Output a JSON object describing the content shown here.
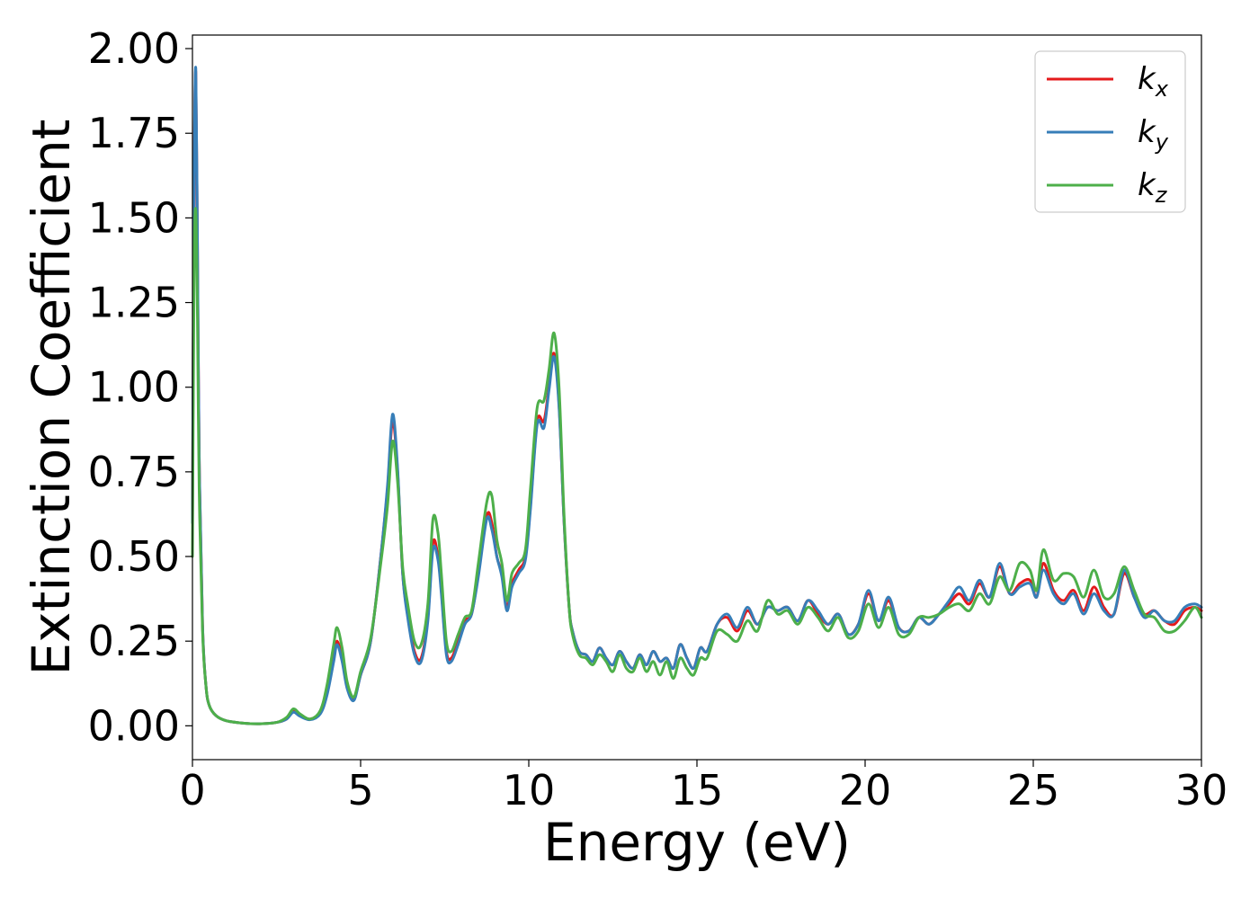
{
  "chart_data": {
    "type": "line",
    "title": "",
    "xlabel": "Energy (eV)",
    "ylabel": "Extinction Coefficient",
    "xlim": [
      0,
      30
    ],
    "ylim": [
      -0.1,
      2.04
    ],
    "xticks": [
      0,
      5,
      10,
      15,
      20,
      25,
      30
    ],
    "xtick_labels": [
      "0",
      "5",
      "10",
      "15",
      "20",
      "25",
      "30"
    ],
    "yticks": [
      0,
      0.25,
      0.5,
      0.75,
      1.0,
      1.25,
      1.5,
      1.75,
      2.0
    ],
    "ytick_labels": [
      "0.00",
      "0.25",
      "0.50",
      "0.75",
      "1.00",
      "1.25",
      "1.50",
      "1.75",
      "2.00"
    ],
    "grid": false,
    "legend_position": "top-right",
    "series": [
      {
        "name": "k_x",
        "label_base": "k",
        "label_sub": "x",
        "color": "#e41a1c",
        "x": [
          0,
          0.05,
          0.1,
          0.15,
          0.2,
          0.3,
          0.4,
          0.5,
          0.7,
          1.0,
          1.5,
          2.0,
          2.5,
          2.8,
          3.0,
          3.2,
          3.5,
          3.8,
          4.0,
          4.2,
          4.3,
          4.45,
          4.6,
          4.8,
          5.0,
          5.3,
          5.6,
          5.8,
          5.95,
          6.1,
          6.25,
          6.4,
          6.6,
          6.8,
          7.0,
          7.15,
          7.3,
          7.4,
          7.55,
          7.7,
          7.9,
          8.1,
          8.3,
          8.5,
          8.75,
          8.9,
          9.05,
          9.2,
          9.35,
          9.5,
          9.7,
          9.9,
          10.05,
          10.25,
          10.45,
          10.6,
          10.75,
          10.9,
          11.05,
          11.2,
          11.3,
          11.5,
          11.7,
          11.9,
          12.1,
          12.3,
          12.5,
          12.7,
          12.9,
          13.1,
          13.3,
          13.5,
          13.7,
          13.9,
          14.1,
          14.3,
          14.5,
          14.7,
          14.9,
          15.1,
          15.3,
          15.6,
          15.9,
          16.2,
          16.5,
          16.8,
          17.1,
          17.4,
          17.7,
          18.0,
          18.3,
          18.6,
          18.9,
          19.2,
          19.5,
          19.8,
          20.1,
          20.4,
          20.7,
          21.0,
          21.3,
          21.6,
          21.9,
          22.2,
          22.5,
          22.8,
          23.1,
          23.4,
          23.7,
          24.0,
          24.3,
          24.6,
          24.9,
          25.1,
          25.3,
          25.6,
          25.9,
          26.2,
          26.5,
          26.8,
          27.1,
          27.4,
          27.7,
          28.0,
          28.3,
          28.6,
          28.9,
          29.2,
          29.5,
          29.8,
          30.0
        ],
        "y": [
          0.6,
          1.6,
          1.93,
          1.4,
          0.8,
          0.3,
          0.12,
          0.06,
          0.03,
          0.015,
          0.008,
          0.006,
          0.01,
          0.02,
          0.045,
          0.03,
          0.02,
          0.04,
          0.1,
          0.2,
          0.25,
          0.2,
          0.12,
          0.08,
          0.15,
          0.25,
          0.5,
          0.7,
          0.9,
          0.75,
          0.45,
          0.33,
          0.22,
          0.2,
          0.32,
          0.54,
          0.5,
          0.4,
          0.22,
          0.2,
          0.25,
          0.31,
          0.33,
          0.45,
          0.62,
          0.6,
          0.5,
          0.45,
          0.35,
          0.42,
          0.46,
          0.5,
          0.65,
          0.9,
          0.9,
          1.0,
          1.1,
          0.95,
          0.6,
          0.35,
          0.28,
          0.22,
          0.21,
          0.19,
          0.23,
          0.2,
          0.18,
          0.22,
          0.19,
          0.17,
          0.21,
          0.18,
          0.22,
          0.19,
          0.2,
          0.17,
          0.24,
          0.2,
          0.17,
          0.23,
          0.22,
          0.3,
          0.32,
          0.28,
          0.34,
          0.3,
          0.35,
          0.34,
          0.35,
          0.31,
          0.37,
          0.33,
          0.3,
          0.33,
          0.27,
          0.3,
          0.39,
          0.31,
          0.37,
          0.29,
          0.28,
          0.32,
          0.3,
          0.33,
          0.36,
          0.39,
          0.36,
          0.42,
          0.38,
          0.47,
          0.39,
          0.42,
          0.43,
          0.38,
          0.48,
          0.4,
          0.37,
          0.4,
          0.34,
          0.41,
          0.35,
          0.33,
          0.45,
          0.38,
          0.33,
          0.34,
          0.31,
          0.3,
          0.34,
          0.35,
          0.34
        ],
        "dy": 0.0
      },
      {
        "name": "k_y",
        "label_base": "k",
        "label_sub": "y",
        "color": "#377eb8",
        "x": [
          0,
          0.05,
          0.1,
          0.15,
          0.2,
          0.3,
          0.4,
          0.5,
          0.7,
          1.0,
          1.5,
          2.0,
          2.5,
          2.8,
          3.0,
          3.2,
          3.5,
          3.8,
          4.0,
          4.2,
          4.3,
          4.45,
          4.6,
          4.8,
          5.0,
          5.3,
          5.6,
          5.8,
          5.95,
          6.1,
          6.25,
          6.4,
          6.6,
          6.8,
          7.0,
          7.15,
          7.3,
          7.4,
          7.55,
          7.7,
          7.9,
          8.1,
          8.3,
          8.5,
          8.75,
          8.9,
          9.05,
          9.2,
          9.35,
          9.5,
          9.7,
          9.9,
          10.05,
          10.25,
          10.45,
          10.6,
          10.75,
          10.9,
          11.05,
          11.2,
          11.3,
          11.5,
          11.7,
          11.9,
          12.1,
          12.3,
          12.5,
          12.7,
          12.9,
          13.1,
          13.3,
          13.5,
          13.7,
          13.9,
          14.1,
          14.3,
          14.5,
          14.7,
          14.9,
          15.1,
          15.3,
          15.6,
          15.9,
          16.2,
          16.5,
          16.8,
          17.1,
          17.4,
          17.7,
          18.0,
          18.3,
          18.6,
          18.9,
          19.2,
          19.5,
          19.8,
          20.1,
          20.4,
          20.7,
          21.0,
          21.3,
          21.6,
          21.9,
          22.2,
          22.5,
          22.8,
          23.1,
          23.4,
          23.7,
          24.0,
          24.3,
          24.6,
          24.9,
          25.1,
          25.3,
          25.6,
          25.9,
          26.2,
          26.5,
          26.8,
          27.1,
          27.4,
          27.7,
          28.0,
          28.3,
          28.6,
          28.9,
          29.2,
          29.5,
          29.8,
          30.0
        ],
        "y": [
          0.6,
          1.62,
          1.94,
          1.42,
          0.8,
          0.3,
          0.12,
          0.06,
          0.03,
          0.015,
          0.008,
          0.006,
          0.01,
          0.02,
          0.04,
          0.028,
          0.018,
          0.035,
          0.09,
          0.19,
          0.24,
          0.19,
          0.11,
          0.075,
          0.15,
          0.25,
          0.5,
          0.71,
          0.92,
          0.76,
          0.45,
          0.32,
          0.21,
          0.19,
          0.31,
          0.52,
          0.49,
          0.39,
          0.21,
          0.19,
          0.24,
          0.3,
          0.33,
          0.44,
          0.61,
          0.58,
          0.5,
          0.44,
          0.34,
          0.41,
          0.45,
          0.49,
          0.64,
          0.89,
          0.88,
          0.99,
          1.09,
          0.94,
          0.6,
          0.35,
          0.28,
          0.22,
          0.21,
          0.19,
          0.23,
          0.2,
          0.18,
          0.22,
          0.19,
          0.17,
          0.21,
          0.18,
          0.22,
          0.19,
          0.2,
          0.17,
          0.24,
          0.2,
          0.17,
          0.23,
          0.22,
          0.3,
          0.33,
          0.29,
          0.35,
          0.3,
          0.35,
          0.34,
          0.35,
          0.31,
          0.37,
          0.34,
          0.3,
          0.33,
          0.27,
          0.3,
          0.4,
          0.31,
          0.38,
          0.29,
          0.28,
          0.32,
          0.3,
          0.33,
          0.37,
          0.41,
          0.37,
          0.43,
          0.38,
          0.48,
          0.39,
          0.41,
          0.42,
          0.38,
          0.46,
          0.39,
          0.36,
          0.39,
          0.33,
          0.39,
          0.34,
          0.33,
          0.46,
          0.38,
          0.32,
          0.34,
          0.31,
          0.31,
          0.35,
          0.36,
          0.35
        ],
        "dy": 0.0
      },
      {
        "name": "k_z",
        "label_base": "k",
        "label_sub": "z",
        "color": "#4daf4a",
        "x": [
          0,
          0.05,
          0.1,
          0.15,
          0.2,
          0.3,
          0.4,
          0.5,
          0.7,
          1.0,
          1.5,
          2.0,
          2.5,
          2.8,
          3.0,
          3.2,
          3.5,
          3.8,
          4.0,
          4.2,
          4.3,
          4.45,
          4.6,
          4.8,
          5.0,
          5.3,
          5.6,
          5.8,
          5.95,
          6.1,
          6.25,
          6.4,
          6.6,
          6.8,
          7.0,
          7.15,
          7.3,
          7.4,
          7.55,
          7.7,
          7.9,
          8.1,
          8.3,
          8.5,
          8.75,
          8.9,
          9.05,
          9.2,
          9.35,
          9.5,
          9.7,
          9.9,
          10.05,
          10.25,
          10.45,
          10.6,
          10.75,
          10.9,
          11.05,
          11.2,
          11.3,
          11.5,
          11.7,
          11.9,
          12.1,
          12.3,
          12.5,
          12.7,
          12.9,
          13.1,
          13.3,
          13.5,
          13.7,
          13.9,
          14.1,
          14.3,
          14.5,
          14.7,
          14.9,
          15.1,
          15.3,
          15.6,
          15.9,
          16.2,
          16.5,
          16.8,
          17.1,
          17.4,
          17.7,
          18.0,
          18.3,
          18.6,
          18.9,
          19.2,
          19.5,
          19.8,
          20.1,
          20.4,
          20.7,
          21.0,
          21.3,
          21.6,
          21.9,
          22.2,
          22.5,
          22.8,
          23.1,
          23.4,
          23.7,
          24.0,
          24.3,
          24.6,
          24.9,
          25.1,
          25.3,
          25.6,
          25.9,
          26.2,
          26.5,
          26.8,
          27.1,
          27.4,
          27.7,
          28.0,
          28.3,
          28.6,
          28.9,
          29.2,
          29.5,
          29.8,
          30.0
        ],
        "y": [
          0.5,
          1.35,
          1.52,
          1.2,
          0.7,
          0.28,
          0.12,
          0.06,
          0.03,
          0.015,
          0.008,
          0.006,
          0.01,
          0.025,
          0.05,
          0.035,
          0.02,
          0.045,
          0.12,
          0.24,
          0.29,
          0.23,
          0.13,
          0.085,
          0.16,
          0.26,
          0.48,
          0.65,
          0.84,
          0.72,
          0.47,
          0.36,
          0.25,
          0.24,
          0.36,
          0.61,
          0.57,
          0.45,
          0.25,
          0.22,
          0.27,
          0.32,
          0.34,
          0.48,
          0.66,
          0.68,
          0.55,
          0.48,
          0.37,
          0.45,
          0.48,
          0.52,
          0.7,
          0.94,
          0.96,
          1.05,
          1.16,
          1.0,
          0.62,
          0.35,
          0.27,
          0.21,
          0.2,
          0.18,
          0.21,
          0.19,
          0.16,
          0.21,
          0.17,
          0.16,
          0.2,
          0.16,
          0.19,
          0.15,
          0.19,
          0.14,
          0.2,
          0.17,
          0.15,
          0.2,
          0.2,
          0.28,
          0.27,
          0.25,
          0.31,
          0.28,
          0.37,
          0.33,
          0.34,
          0.3,
          0.35,
          0.32,
          0.28,
          0.32,
          0.26,
          0.28,
          0.36,
          0.29,
          0.35,
          0.27,
          0.27,
          0.32,
          0.32,
          0.33,
          0.35,
          0.36,
          0.34,
          0.39,
          0.36,
          0.44,
          0.4,
          0.48,
          0.46,
          0.4,
          0.52,
          0.43,
          0.45,
          0.44,
          0.38,
          0.46,
          0.38,
          0.39,
          0.47,
          0.4,
          0.33,
          0.32,
          0.28,
          0.28,
          0.31,
          0.35,
          0.32
        ],
        "dy": 0.0
      }
    ]
  }
}
